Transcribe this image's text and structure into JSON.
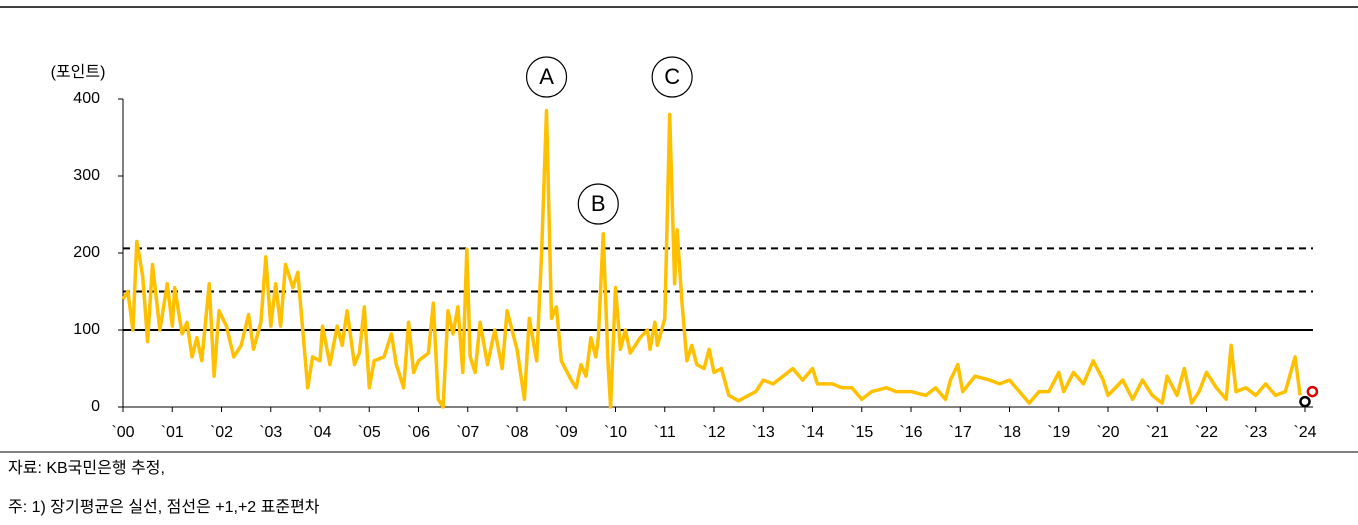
{
  "chart_data": {
    "type": "line",
    "y_label": "(포인트)",
    "source": "자료: KB국민은행 추정,",
    "note": "주: 1) 장기평균은 실선, 점선은 +1,+2 표준편차",
    "xlim": [
      2000,
      2024
    ],
    "ylim": [
      0,
      400
    ],
    "yticks": [
      0,
      100,
      200,
      300,
      400
    ],
    "xticks": [
      {
        "value": 2000,
        "label": "`00"
      },
      {
        "value": 2001,
        "label": "`01"
      },
      {
        "value": 2002,
        "label": "`02"
      },
      {
        "value": 2003,
        "label": "`03"
      },
      {
        "value": 2004,
        "label": "`04"
      },
      {
        "value": 2005,
        "label": "`05"
      },
      {
        "value": 2006,
        "label": "`06"
      },
      {
        "value": 2007,
        "label": "`07"
      },
      {
        "value": 2008,
        "label": "`08"
      },
      {
        "value": 2009,
        "label": "`09"
      },
      {
        "value": 2010,
        "label": "`10"
      },
      {
        "value": 2011,
        "label": "`11"
      },
      {
        "value": 2012,
        "label": "`12"
      },
      {
        "value": 2013,
        "label": "`13"
      },
      {
        "value": 2014,
        "label": "`14"
      },
      {
        "value": 2015,
        "label": "`15"
      },
      {
        "value": 2016,
        "label": "`16"
      },
      {
        "value": 2017,
        "label": "`17"
      },
      {
        "value": 2018,
        "label": "`18"
      },
      {
        "value": 2019,
        "label": "`19"
      },
      {
        "value": 2020,
        "label": "`20"
      },
      {
        "value": 2021,
        "label": "`21"
      },
      {
        "value": 2022,
        "label": "`22"
      },
      {
        "value": 2023,
        "label": "`23"
      },
      {
        "value": 2024,
        "label": "`24"
      }
    ],
    "reference_lines": [
      {
        "value": 100,
        "style": "solid"
      },
      {
        "value": 150,
        "style": "dashed"
      },
      {
        "value": 206,
        "style": "dashed"
      }
    ],
    "annotations": [
      "A",
      "B",
      "C"
    ],
    "x": [
      2000.0,
      2000.1,
      2000.2,
      2000.28,
      2000.4,
      2000.5,
      2000.6,
      2000.75,
      2000.9,
      2001.0,
      2001.05,
      2001.2,
      2001.3,
      2001.4,
      2001.5,
      2001.6,
      2001.75,
      2001.85,
      2001.95,
      2002.1,
      2002.25,
      2002.4,
      2002.55,
      2002.65,
      2002.8,
      2002.9,
      2003.0,
      2003.1,
      2003.2,
      2003.3,
      2003.45,
      2003.55,
      2003.75,
      2003.85,
      2004.0,
      2004.05,
      2004.2,
      2004.35,
      2004.45,
      2004.55,
      2004.7,
      2004.8,
      2004.9,
      2005.0,
      2005.1,
      2005.3,
      2005.45,
      2005.55,
      2005.7,
      2005.8,
      2005.9,
      2006.0,
      2006.2,
      2006.3,
      2006.4,
      2006.5,
      2006.6,
      2006.7,
      2006.8,
      2006.9,
      2006.98,
      2007.05,
      2007.15,
      2007.25,
      2007.4,
      2007.55,
      2007.7,
      2007.8,
      2008.0,
      2008.15,
      2008.25,
      2008.4,
      2008.5,
      2008.6,
      2008.7,
      2008.8,
      2008.9,
      2009.1,
      2009.2,
      2009.3,
      2009.4,
      2009.5,
      2009.6,
      2009.65,
      2009.75,
      2009.85,
      2009.9,
      2010.0,
      2010.1,
      2010.2,
      2010.3,
      2010.5,
      2010.65,
      2010.7,
      2010.8,
      2010.85,
      2011.0,
      2011.1,
      2011.2,
      2011.25,
      2011.35,
      2011.45,
      2011.55,
      2011.65,
      2011.8,
      2011.9,
      2012.0,
      2012.15,
      2012.3,
      2012.5,
      2012.7,
      2012.85,
      2013.0,
      2013.2,
      2013.4,
      2013.6,
      2013.8,
      2014.0,
      2014.1,
      2014.4,
      2014.6,
      2014.8,
      2015.0,
      2015.2,
      2015.5,
      2015.7,
      2016.0,
      2016.3,
      2016.5,
      2016.7,
      2016.8,
      2016.95,
      2017.05,
      2017.3,
      2017.6,
      2017.8,
      2018.0,
      2018.2,
      2018.4,
      2018.6,
      2018.8,
      2019.0,
      2019.1,
      2019.3,
      2019.5,
      2019.7,
      2019.9,
      2020.0,
      2020.3,
      2020.5,
      2020.7,
      2020.9,
      2021.1,
      2021.2,
      2021.4,
      2021.55,
      2021.7,
      2021.85,
      2022.0,
      2022.2,
      2022.4,
      2022.5,
      2022.6,
      2022.8,
      2023.0,
      2023.2,
      2023.4,
      2023.6,
      2023.8,
      2023.9
    ],
    "series": [
      {
        "color": "#FFC000",
        "values": [
          140,
          150,
          100,
          215,
          170,
          85,
          185,
          100,
          160,
          105,
          155,
          95,
          110,
          65,
          90,
          60,
          160,
          40,
          125,
          105,
          65,
          80,
          120,
          75,
          110,
          195,
          105,
          160,
          105,
          185,
          155,
          175,
          25,
          65,
          60,
          105,
          55,
          105,
          80,
          125,
          55,
          70,
          130,
          25,
          60,
          65,
          95,
          55,
          25,
          110,
          45,
          60,
          70,
          135,
          10,
          0,
          125,
          95,
          130,
          45,
          205,
          65,
          45,
          110,
          55,
          100,
          50,
          125,
          75,
          10,
          115,
          60,
          200,
          385,
          115,
          130,
          60,
          35,
          25,
          55,
          40,
          90,
          65,
          90,
          225,
          55,
          0,
          155,
          75,
          100,
          70,
          90,
          100,
          75,
          110,
          80,
          115,
          380,
          160,
          230,
          135,
          60,
          80,
          55,
          50,
          75,
          45,
          50,
          15,
          8,
          15,
          20,
          35,
          30,
          40,
          50,
          35,
          50,
          30,
          30,
          25,
          25,
          10,
          20,
          25,
          20,
          20,
          15,
          25,
          10,
          35,
          55,
          20,
          40,
          35,
          30,
          35,
          20,
          5,
          20,
          20,
          45,
          20,
          45,
          30,
          60,
          35,
          15,
          35,
          10,
          35,
          15,
          5,
          40,
          15,
          50,
          5,
          20,
          45,
          25,
          10,
          80,
          20,
          25,
          15,
          30,
          15,
          20,
          65,
          15
        ]
      }
    ],
    "markers": [
      {
        "x": 2024.0,
        "value": 7,
        "color": "#000000"
      },
      {
        "x": 2024.15,
        "value": 20,
        "color": "#e00000"
      }
    ]
  }
}
